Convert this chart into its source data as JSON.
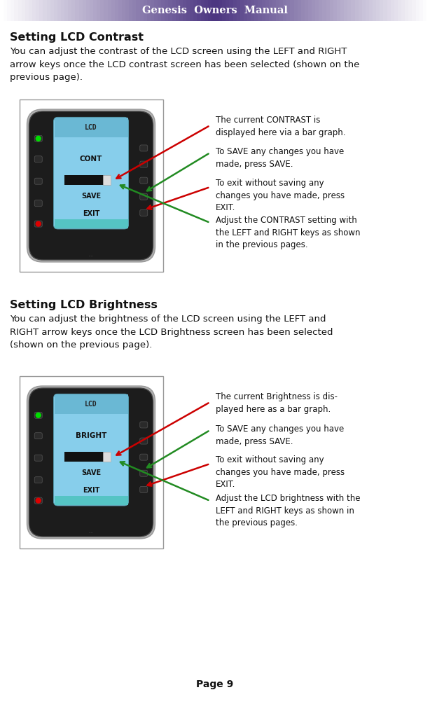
{
  "header_text": "Genesis  Owners  Manual",
  "header_text_color": "#ffffff",
  "bg_color": "#ffffff",
  "body_text_color": "#111111",
  "section1_title": "Setting LCD Contrast",
  "section1_body": "You can adjust the contrast of the LCD screen using the LEFT and RIGHT\narrow keys once the LCD contrast screen has been selected (shown on the\nprevious page).",
  "section2_title": "Setting LCD Brightness",
  "section2_body": "You can adjust the brightness of the LCD screen using the LEFT and\nRIGHT arrow keys once the LCD Brightness screen has been selected\n(shown on the previous page).",
  "callout1_lines": [
    "The current CONTRAST is\ndisplayed here via a bar graph.",
    "To SAVE any changes you have\nmade, press SAVE.",
    "To exit without saving any\nchanges you have made, press\nEXIT.",
    "Adjust the CONTRAST setting with\nthe LEFT and RIGHT keys as shown\nin the previous pages."
  ],
  "callout2_lines": [
    "The current Brightness is dis-\nplayed here as a bar graph.",
    "To SAVE any changes you have\nmade, press SAVE.",
    "To exit without saving any\nchanges you have made, press\nEXIT.",
    "Adjust the LCD brightness with the\nLEFT and RIGHT keys as shown in\nthe previous pages."
  ],
  "page_number": "Page 9",
  "arrow_red": "#cc0000",
  "arrow_green": "#228B22",
  "remote1_main_label": "CONT",
  "remote2_main_label": "BRIGHT"
}
